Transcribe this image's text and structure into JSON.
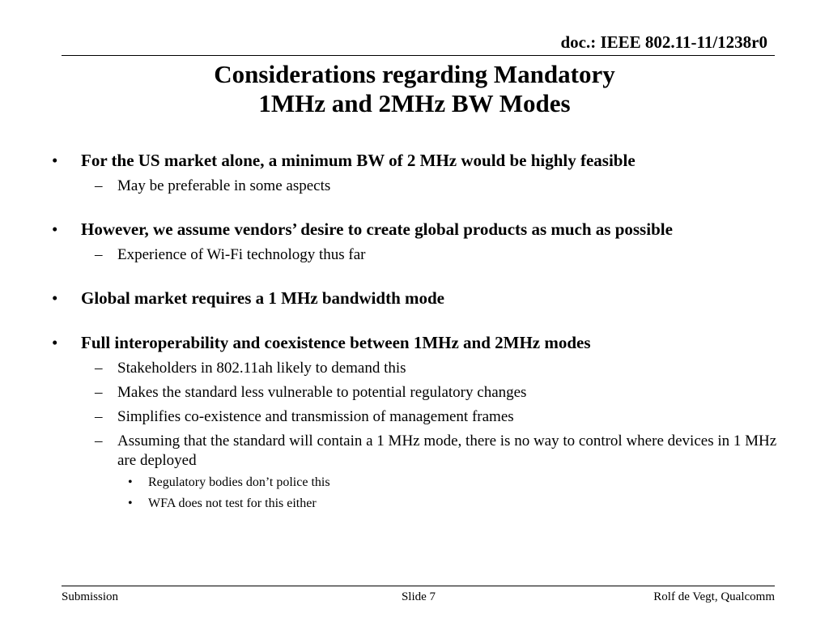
{
  "header": {
    "doc_id": "doc.: IEEE 802.11-11/1238r0"
  },
  "title": {
    "line1": "Considerations regarding Mandatory",
    "line2": "1MHz and 2MHz BW Modes"
  },
  "bullets": [
    {
      "text": "For the US market alone, a minimum BW of 2 MHz would be highly feasible",
      "subs": [
        {
          "text": "May be preferable in some aspects"
        }
      ]
    },
    {
      "text": "However, we assume vendors’ desire to create global  products as much as possible",
      "subs": [
        {
          "text": "Experience of Wi-Fi technology thus far"
        }
      ]
    },
    {
      "text": "Global market requires a 1 MHz bandwidth mode",
      "subs": []
    },
    {
      "text": "Full interoperability and coexistence between 1MHz and 2MHz modes",
      "subs": [
        {
          "text": "Stakeholders in 802.11ah likely to demand this"
        },
        {
          "text": "Makes the standard less vulnerable to potential regulatory changes"
        },
        {
          "text": "Simplifies co-existence and transmission of management frames"
        },
        {
          "text": "Assuming that the standard will contain a 1 MHz mode, there is no way to control where devices in 1 MHz are deployed",
          "subs": [
            {
              "text": "Regulatory bodies don’t police this"
            },
            {
              "text": "WFA does not test for this either"
            }
          ]
        }
      ]
    }
  ],
  "footer": {
    "left": "Submission",
    "center": "Slide 7",
    "right": "Rolf de Vegt, Qualcomm"
  },
  "symbols": {
    "bullet": "•",
    "dash": "–"
  }
}
